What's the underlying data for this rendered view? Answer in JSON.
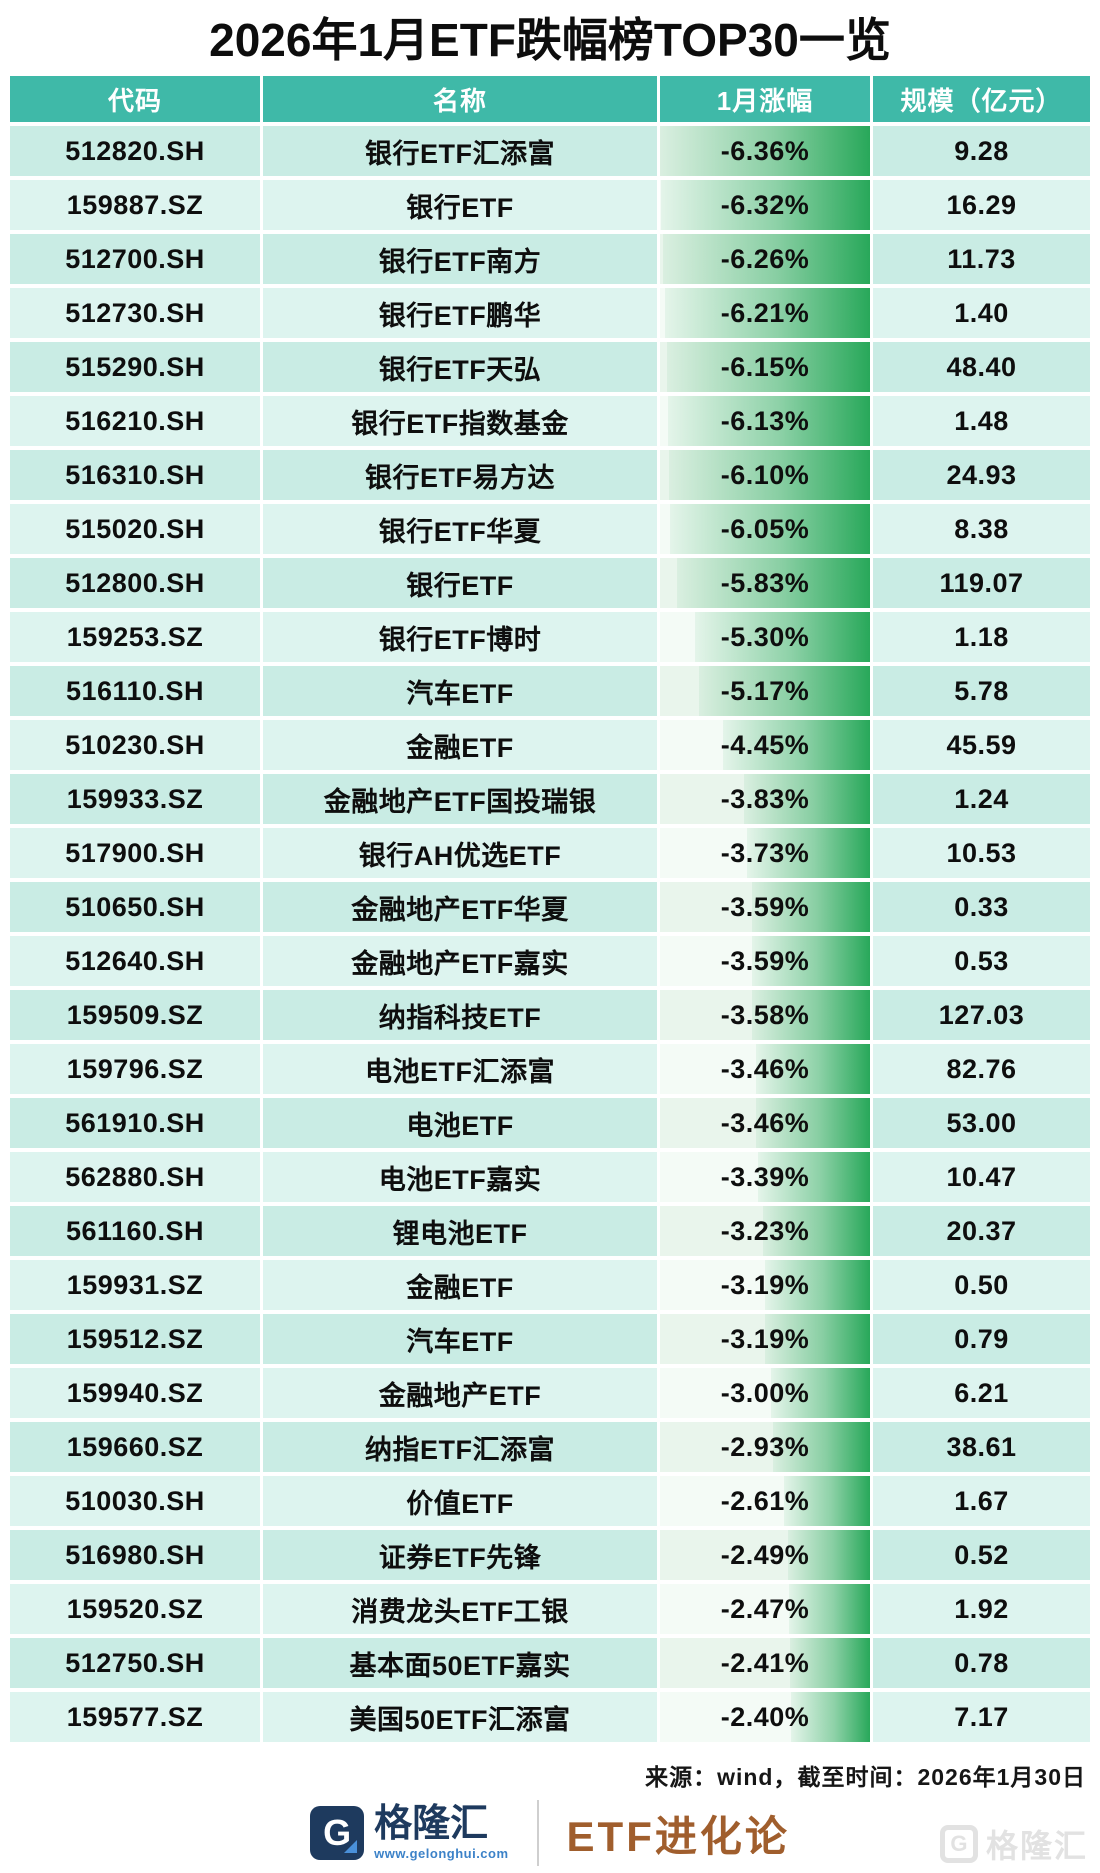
{
  "title": "2026年1月ETF跌幅榜TOP30一览",
  "chart_data": {
    "type": "table",
    "title": "2026年1月ETF跌幅榜TOP30一览",
    "columns": [
      "代码",
      "名称",
      "1月涨幅",
      "规模（亿元）"
    ],
    "bar_column": "1月涨幅",
    "bar_max_abs_pct": 6.36,
    "bar_color": "#28A85A",
    "rows": [
      {
        "code": "512820.SH",
        "name": "银行ETF汇添富",
        "change": "-6.36%",
        "scale": "9.28"
      },
      {
        "code": "159887.SZ",
        "name": "银行ETF",
        "change": "-6.32%",
        "scale": "16.29"
      },
      {
        "code": "512700.SH",
        "name": "银行ETF南方",
        "change": "-6.26%",
        "scale": "11.73"
      },
      {
        "code": "512730.SH",
        "name": "银行ETF鹏华",
        "change": "-6.21%",
        "scale": "1.40"
      },
      {
        "code": "515290.SH",
        "name": "银行ETF天弘",
        "change": "-6.15%",
        "scale": "48.40"
      },
      {
        "code": "516210.SH",
        "name": "银行ETF指数基金",
        "change": "-6.13%",
        "scale": "1.48"
      },
      {
        "code": "516310.SH",
        "name": "银行ETF易方达",
        "change": "-6.10%",
        "scale": "24.93"
      },
      {
        "code": "515020.SH",
        "name": "银行ETF华夏",
        "change": "-6.05%",
        "scale": "8.38"
      },
      {
        "code": "512800.SH",
        "name": "银行ETF",
        "change": "-5.83%",
        "scale": "119.07"
      },
      {
        "code": "159253.SZ",
        "name": "银行ETF博时",
        "change": "-5.30%",
        "scale": "1.18"
      },
      {
        "code": "516110.SH",
        "name": "汽车ETF",
        "change": "-5.17%",
        "scale": "5.78"
      },
      {
        "code": "510230.SH",
        "name": "金融ETF",
        "change": "-4.45%",
        "scale": "45.59"
      },
      {
        "code": "159933.SZ",
        "name": "金融地产ETF国投瑞银",
        "change": "-3.83%",
        "scale": "1.24"
      },
      {
        "code": "517900.SH",
        "name": "银行AH优选ETF",
        "change": "-3.73%",
        "scale": "10.53"
      },
      {
        "code": "510650.SH",
        "name": "金融地产ETF华夏",
        "change": "-3.59%",
        "scale": "0.33"
      },
      {
        "code": "512640.SH",
        "name": "金融地产ETF嘉实",
        "change": "-3.59%",
        "scale": "0.53"
      },
      {
        "code": "159509.SZ",
        "name": "纳指科技ETF",
        "change": "-3.58%",
        "scale": "127.03"
      },
      {
        "code": "159796.SZ",
        "name": "电池ETF汇添富",
        "change": "-3.46%",
        "scale": "82.76"
      },
      {
        "code": "561910.SH",
        "name": "电池ETF",
        "change": "-3.46%",
        "scale": "53.00"
      },
      {
        "code": "562880.SH",
        "name": "电池ETF嘉实",
        "change": "-3.39%",
        "scale": "10.47"
      },
      {
        "code": "561160.SH",
        "name": "锂电池ETF",
        "change": "-3.23%",
        "scale": "20.37"
      },
      {
        "code": "159931.SZ",
        "name": "金融ETF",
        "change": "-3.19%",
        "scale": "0.50"
      },
      {
        "code": "159512.SZ",
        "name": "汽车ETF",
        "change": "-3.19%",
        "scale": "0.79"
      },
      {
        "code": "159940.SZ",
        "name": "金融地产ETF",
        "change": "-3.00%",
        "scale": "6.21"
      },
      {
        "code": "159660.SZ",
        "name": "纳指ETF汇添富",
        "change": "-2.93%",
        "scale": "38.61"
      },
      {
        "code": "510030.SH",
        "name": "价值ETF",
        "change": "-2.61%",
        "scale": "1.67"
      },
      {
        "code": "516980.SH",
        "name": "证券ETF先锋",
        "change": "-2.49%",
        "scale": "0.52"
      },
      {
        "code": "159520.SZ",
        "name": "消费龙头ETF工银",
        "change": "-2.47%",
        "scale": "1.92"
      },
      {
        "code": "512750.SH",
        "name": "基本面50ETF嘉实",
        "change": "-2.41%",
        "scale": "0.78"
      },
      {
        "code": "159577.SZ",
        "name": "美国50ETF汇添富",
        "change": "-2.40%",
        "scale": "7.17"
      }
    ]
  },
  "footer": {
    "source": "来源：wind，截至时间：2026年1月30日"
  },
  "branding": {
    "logo_letter": "G",
    "logo_name": "格隆汇",
    "logo_url": "www.gelonghui.com",
    "channel_name": "ETF进化论",
    "watermark_letter": "G",
    "watermark_text": "格隆汇"
  },
  "colors": {
    "header_bg": "#3FB9A8",
    "row_odd": "#C9ECE4",
    "row_even": "#DDF4EF",
    "bar_green": "#28A85A",
    "brand_navy": "#1E3A5E",
    "brand_blue": "#3C82C8",
    "brand_brown": "#A05E2D"
  }
}
